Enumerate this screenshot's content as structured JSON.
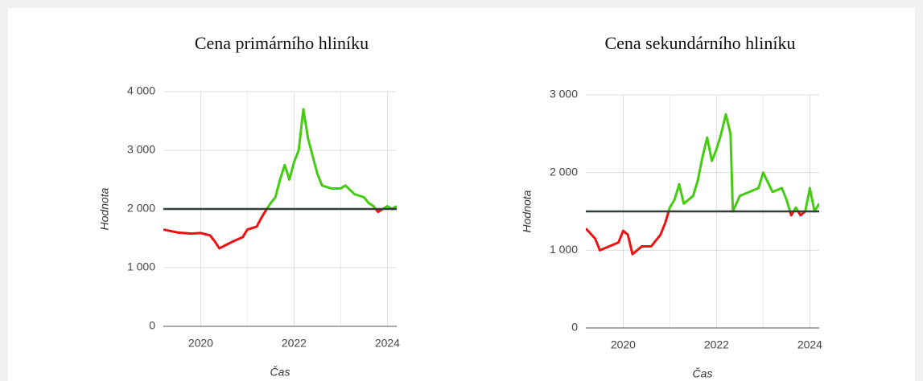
{
  "chart_data": [
    {
      "type": "line",
      "title": "Cena primárního hliníku",
      "xlabel": "Čas",
      "ylabel": "Hodnota",
      "x": [
        2019.2,
        2019.5,
        2019.8,
        2020.0,
        2020.2,
        2020.3,
        2020.4,
        2020.5,
        2020.7,
        2020.9,
        2021.0,
        2021.2,
        2021.3,
        2021.4,
        2021.5,
        2021.6,
        2021.7,
        2021.8,
        2021.9,
        2022.0,
        2022.1,
        2022.2,
        2022.3,
        2022.4,
        2022.5,
        2022.6,
        2022.8,
        2023.0,
        2023.1,
        2023.3,
        2023.5,
        2023.6,
        2023.7,
        2023.8,
        2023.9,
        2024.0,
        2024.1,
        2024.2
      ],
      "values": [
        1650,
        1600,
        1580,
        1590,
        1550,
        1450,
        1330,
        1370,
        1450,
        1520,
        1650,
        1700,
        1850,
        1980,
        2100,
        2200,
        2500,
        2750,
        2500,
        2800,
        3000,
        3700,
        3200,
        2900,
        2600,
        2400,
        2350,
        2350,
        2400,
        2250,
        2200,
        2100,
        2050,
        1950,
        2000,
        2050,
        2000,
        2050
      ],
      "threshold": 2000,
      "color_above": "#44cc11",
      "color_below": "#ee1111",
      "threshold_color": "#333d3d",
      "xlim": [
        2019.2,
        2024.2
      ],
      "xticks": [
        2020,
        2022,
        2024
      ],
      "xminor": [
        2021,
        2023
      ],
      "ylim": [
        0,
        4000
      ],
      "yticks": [
        0,
        {
          "value": 1000,
          "label": "1 000"
        },
        {
          "value": 2000,
          "label": "2 000"
        },
        {
          "value": 3000,
          "label": "3 000"
        },
        {
          "value": 4000,
          "label": "4 000"
        }
      ],
      "grid": true
    },
    {
      "type": "line",
      "title": "Cena sekundárního hliníku",
      "xlabel": "Čas",
      "ylabel": "Hodnota",
      "x": [
        2019.2,
        2019.4,
        2019.5,
        2019.7,
        2019.9,
        2020.0,
        2020.1,
        2020.2,
        2020.4,
        2020.6,
        2020.8,
        2020.9,
        2021.0,
        2021.1,
        2021.2,
        2021.3,
        2021.5,
        2021.6,
        2021.7,
        2021.8,
        2021.9,
        2022.0,
        2022.1,
        2022.2,
        2022.3,
        2022.35,
        2022.5,
        2022.7,
        2022.9,
        2023.0,
        2023.2,
        2023.4,
        2023.5,
        2023.6,
        2023.7,
        2023.8,
        2023.9,
        2024.0,
        2024.1,
        2024.2
      ],
      "values": [
        1280,
        1150,
        1000,
        1050,
        1100,
        1250,
        1200,
        950,
        1050,
        1050,
        1200,
        1350,
        1550,
        1650,
        1850,
        1600,
        1700,
        1900,
        2200,
        2450,
        2150,
        2300,
        2500,
        2750,
        2500,
        1500,
        1700,
        1750,
        1800,
        2000,
        1750,
        1800,
        1650,
        1450,
        1550,
        1450,
        1500,
        1800,
        1500,
        1600
      ],
      "threshold": 1500,
      "color_above": "#44cc11",
      "color_below": "#ee1111",
      "threshold_color": "#333d3d",
      "xlim": [
        2019.2,
        2024.2
      ],
      "xticks": [
        2020,
        2022,
        2024
      ],
      "xminor": [
        2021,
        2023
      ],
      "ylim": [
        0,
        3000
      ],
      "yticks": [
        0,
        {
          "value": 1000,
          "label": "1 000"
        },
        {
          "value": 2000,
          "label": "2 000"
        },
        {
          "value": 3000,
          "label": "3 000"
        }
      ],
      "grid": true
    }
  ]
}
